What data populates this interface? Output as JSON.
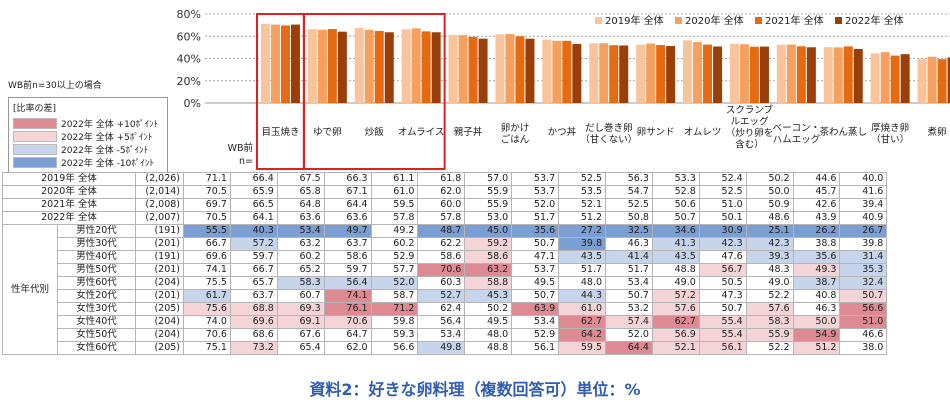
{
  "chart_data": {
    "type": "bar",
    "title": "資料2：好きな卵料理（複数回答可）単位：%",
    "ylim": [
      0,
      80
    ],
    "yticks": [
      "0%",
      "20%",
      "40%",
      "60%",
      "80%"
    ],
    "categories": [
      "目玉焼き",
      "ゆで卵",
      "炒飯",
      "オムライス",
      "親子丼",
      "卵かけごはん",
      "かつ丼",
      "だし巻き卵（甘くない）",
      "卵サンド",
      "オムレツ",
      "スクランブルエッグ（炒り卵を含む）",
      "ベーコン・ハムエッグ",
      "茶わん蒸し",
      "厚焼き卵（甘い）",
      "煮卵"
    ],
    "category_lines": [
      [
        "目玉焼き"
      ],
      [
        "ゆで卵"
      ],
      [
        "炒飯"
      ],
      [
        "オムライス"
      ],
      [
        "親子丼"
      ],
      [
        "卵かけ",
        "ごはん"
      ],
      [
        "かつ丼"
      ],
      [
        "だし巻き卵",
        "（甘くない）"
      ],
      [
        "卵サンド"
      ],
      [
        "オムレツ"
      ],
      [
        "スクランブ",
        "ルエッグ",
        "（炒り卵を",
        "含む）"
      ],
      [
        "ベーコン・",
        "ハムエッグ"
      ],
      [
        "茶わん蒸し"
      ],
      [
        "厚焼き卵",
        "（甘い）"
      ],
      [
        "煮卵"
      ]
    ],
    "series": [
      {
        "name": "2019年 全体",
        "color": "#f9c49c",
        "values": [
          71.1,
          66.4,
          67.5,
          66.3,
          61.1,
          61.8,
          57.0,
          53.7,
          52.5,
          56.3,
          53.3,
          52.4,
          50.2,
          44.6,
          40.0
        ]
      },
      {
        "name": "2020年 全体",
        "color": "#f5a05f",
        "values": [
          70.5,
          65.9,
          65.8,
          67.1,
          61.0,
          62.0,
          55.9,
          53.7,
          53.5,
          54.7,
          52.8,
          52.5,
          50.0,
          45.7,
          41.6
        ]
      },
      {
        "name": "2021年 全体",
        "color": "#e46b12",
        "values": [
          69.7,
          66.5,
          64.8,
          64.4,
          59.5,
          60.0,
          55.9,
          52.0,
          52.1,
          52.5,
          50.6,
          51.0,
          50.9,
          42.6,
          39.4
        ]
      },
      {
        "name": "2022年 全体",
        "color": "#9b3f0a",
        "values": [
          70.5,
          64.1,
          63.6,
          63.6,
          57.8,
          57.8,
          53.0,
          51.7,
          51.2,
          50.8,
          50.7,
          50.1,
          48.6,
          43.9,
          40.9
        ]
      }
    ],
    "highlight_groups": [
      [
        0
      ],
      [
        1,
        2,
        3
      ]
    ],
    "legend_position": "top-right",
    "grid": true
  },
  "table": {
    "wb_header": "WB前",
    "n_header": "n=",
    "overall_rows": [
      {
        "label": "2019年 全体",
        "n": "(2,026)",
        "values": [
          "71.1",
          "66.4",
          "67.5",
          "66.3",
          "61.1",
          "61.8",
          "57.0",
          "53.7",
          "52.5",
          "56.3",
          "53.3",
          "52.4",
          "50.2",
          "44.6",
          "40.0"
        ]
      },
      {
        "label": "2020年 全体",
        "n": "(2,014)",
        "values": [
          "70.5",
          "65.9",
          "65.8",
          "67.1",
          "61.0",
          "62.0",
          "55.9",
          "53.7",
          "53.5",
          "54.7",
          "52.8",
          "52.5",
          "50.0",
          "45.7",
          "41.6"
        ]
      },
      {
        "label": "2021年 全体",
        "n": "(2,008)",
        "values": [
          "69.7",
          "66.5",
          "64.8",
          "64.4",
          "59.5",
          "60.0",
          "55.9",
          "52.0",
          "52.1",
          "52.5",
          "50.6",
          "51.0",
          "50.9",
          "42.6",
          "39.4"
        ]
      },
      {
        "label": "2022年 全体",
        "n": "(2,007)",
        "values": [
          "70.5",
          "64.1",
          "63.6",
          "63.6",
          "57.8",
          "57.8",
          "53.0",
          "51.7",
          "51.2",
          "50.8",
          "50.7",
          "50.1",
          "48.6",
          "43.9",
          "40.9"
        ]
      }
    ],
    "group_label": "性年代別",
    "segment_rows": [
      {
        "label": "男性20代",
        "n": "(191)",
        "values": [
          "55.5",
          "40.3",
          "53.4",
          "49.7",
          "49.2",
          "48.7",
          "45.0",
          "35.6",
          "27.2",
          "32.5",
          "34.6",
          "30.9",
          "25.1",
          "26.2",
          "26.7"
        ],
        "marks": [
          "ds",
          "ds",
          "ds",
          "ds",
          "0",
          "ds",
          "ds",
          "ds",
          "ds",
          "ds",
          "ds",
          "ds",
          "ds",
          "ds",
          "ds"
        ]
      },
      {
        "label": "男性30代",
        "n": "(201)",
        "values": [
          "66.7",
          "57.2",
          "63.2",
          "63.7",
          "60.2",
          "62.2",
          "59.2",
          "50.7",
          "39.8",
          "46.3",
          "41.3",
          "42.3",
          "42.3",
          "38.8",
          "39.8"
        ],
        "marks": [
          "0",
          "ls",
          "0",
          "0",
          "0",
          "0",
          "lp",
          "0",
          "ds",
          "0",
          "ls",
          "ls",
          "ls",
          "0",
          "0"
        ]
      },
      {
        "label": "男性40代",
        "n": "(191)",
        "values": [
          "69.6",
          "59.7",
          "60.2",
          "58.6",
          "52.9",
          "58.6",
          "58.6",
          "47.1",
          "43.5",
          "41.4",
          "43.5",
          "47.6",
          "39.3",
          "35.6",
          "31.4"
        ],
        "marks": [
          "0",
          "0",
          "0",
          "0",
          "0",
          "0",
          "lp",
          "0",
          "ls",
          "ls",
          "ls",
          "0",
          "ls",
          "ls",
          "ls"
        ]
      },
      {
        "label": "男性50代",
        "n": "(201)",
        "values": [
          "74.1",
          "66.7",
          "65.2",
          "59.7",
          "57.7",
          "70.6",
          "63.2",
          "53.7",
          "51.7",
          "51.7",
          "48.8",
          "56.7",
          "48.3",
          "49.3",
          "35.3"
        ],
        "marks": [
          "0",
          "0",
          "0",
          "0",
          "0",
          "dp",
          "dp",
          "0",
          "0",
          "0",
          "0",
          "lp",
          "0",
          "lp",
          "ls"
        ]
      },
      {
        "label": "男性60代",
        "n": "(204)",
        "values": [
          "75.5",
          "65.7",
          "58.3",
          "56.4",
          "52.0",
          "60.3",
          "58.8",
          "49.5",
          "48.0",
          "53.4",
          "49.0",
          "50.5",
          "49.0",
          "38.7",
          "32.4"
        ],
        "marks": [
          "0",
          "0",
          "ls",
          "ls",
          "ls",
          "0",
          "lp",
          "0",
          "0",
          "0",
          "0",
          "0",
          "0",
          "ls",
          "ls"
        ]
      },
      {
        "label": "女性20代",
        "n": "(201)",
        "values": [
          "61.7",
          "63.7",
          "60.7",
          "74.1",
          "58.7",
          "52.7",
          "45.3",
          "50.7",
          "44.3",
          "50.7",
          "57.2",
          "47.3",
          "52.2",
          "40.8",
          "50.7"
        ],
        "marks": [
          "ls",
          "0",
          "0",
          "dp",
          "0",
          "ls",
          "ls",
          "0",
          "ls",
          "0",
          "lp",
          "0",
          "0",
          "0",
          "lp"
        ]
      },
      {
        "label": "女性30代",
        "n": "(205)",
        "values": [
          "75.6",
          "68.8",
          "69.3",
          "76.1",
          "71.2",
          "62.4",
          "50.2",
          "63.9",
          "61.0",
          "53.2",
          "57.6",
          "50.7",
          "57.6",
          "46.3",
          "56.6"
        ],
        "marks": [
          "lp",
          "lp",
          "lp",
          "dp",
          "dp",
          "0",
          "0",
          "dp",
          "lp",
          "0",
          "lp",
          "0",
          "lp",
          "0",
          "dp"
        ]
      },
      {
        "label": "女性40代",
        "n": "(204)",
        "values": [
          "74.0",
          "69.6",
          "69.1",
          "70.6",
          "59.8",
          "56.4",
          "49.5",
          "53.4",
          "62.7",
          "57.4",
          "62.7",
          "55.4",
          "58.3",
          "50.0",
          "51.0"
        ],
        "marks": [
          "0",
          "lp",
          "lp",
          "lp",
          "0",
          "0",
          "0",
          "0",
          "dp",
          "lp",
          "dp",
          "lp",
          "lp",
          "lp",
          "dp"
        ]
      },
      {
        "label": "女性50代",
        "n": "(204)",
        "values": [
          "70.6",
          "68.6",
          "67.6",
          "64.7",
          "59.3",
          "53.4",
          "48.0",
          "52.9",
          "64.2",
          "52.0",
          "56.9",
          "55.4",
          "55.9",
          "54.9",
          "46.6"
        ],
        "marks": [
          "0",
          "0",
          "0",
          "0",
          "0",
          "0",
          "0",
          "0",
          "dp",
          "0",
          "lp",
          "lp",
          "lp",
          "dp",
          "0"
        ]
      },
      {
        "label": "女性60代",
        "n": "(205)",
        "values": [
          "75.1",
          "73.2",
          "65.4",
          "62.0",
          "56.6",
          "49.8",
          "48.8",
          "56.1",
          "59.5",
          "64.4",
          "52.1",
          "56.1",
          "52.2",
          "51.2",
          "38.0"
        ],
        "marks": [
          "0",
          "lp",
          "0",
          "0",
          "0",
          "ls",
          "0",
          "0",
          "lp",
          "dp",
          "lp",
          "lp",
          "0",
          "lp",
          "0"
        ]
      }
    ],
    "mark_colors": {
      "dp": "#dd8a93",
      "lp": "#f5d4d8",
      "ls": "#c6d4ec",
      "ds": "#7b9ed3"
    }
  },
  "notes": {
    "wb_note": "WB前n=30以上の場合",
    "legend_title": "[比率の差]",
    "legend_items": [
      {
        "label": "2022年 全体 +10ﾎﾟｲﾝﾄ",
        "color": "#dd8a93"
      },
      {
        "label": "2022年 全体 +5ﾎﾟｲﾝﾄ",
        "color": "#f5d4d8"
      },
      {
        "label": "2022年 全体 -5ﾎﾟｲﾝﾄ",
        "color": "#c6d4ec"
      },
      {
        "label": "2022年 全体 -10ﾎﾟｲﾝﾄ",
        "color": "#7b9ed3"
      }
    ]
  }
}
